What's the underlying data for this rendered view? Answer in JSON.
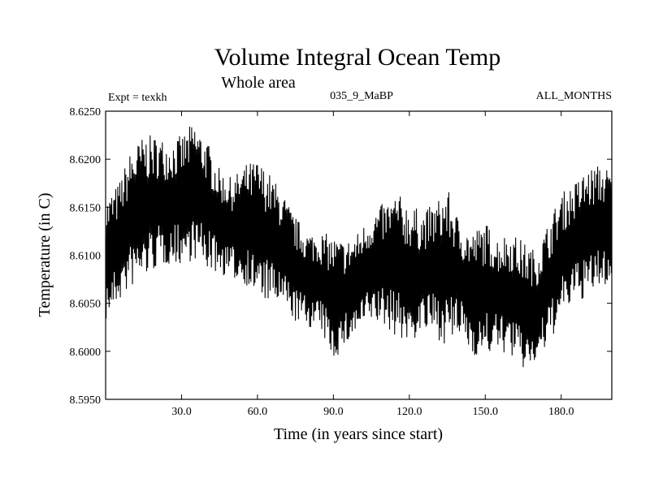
{
  "chart_data": {
    "type": "line",
    "title": "Volume Integral Ocean Temp",
    "subtitle": "Whole area",
    "annotations": {
      "experiment": "Expt = texkh",
      "period": "035_9_MaBP",
      "months": "ALL_MONTHS"
    },
    "xlabel": "Time (in years since start)",
    "ylabel": "Temperature (in C)",
    "xlim": [
      0,
      200
    ],
    "ylim": [
      8.595,
      8.625
    ],
    "xticks": [
      30,
      60,
      90,
      120,
      150,
      180
    ],
    "xtick_labels": [
      "30.0",
      "60.0",
      "90.0",
      "120.0",
      "150.0",
      "180.0"
    ],
    "yticks": [
      8.595,
      8.6,
      8.605,
      8.61,
      8.615,
      8.62,
      8.625
    ],
    "ytick_labels": [
      "8.5950",
      "8.6000",
      "8.6050",
      "8.6100",
      "8.6150",
      "8.6200",
      "8.6250"
    ],
    "grid": false,
    "series": [
      {
        "name": "Volume integral ocean temperature",
        "color": "#000000",
        "envelope_x": [
          0,
          5,
          10,
          15,
          20,
          25,
          30,
          35,
          40,
          45,
          50,
          55,
          60,
          65,
          70,
          75,
          80,
          85,
          90,
          95,
          100,
          105,
          110,
          115,
          120,
          125,
          130,
          135,
          140,
          145,
          150,
          155,
          160,
          165,
          170,
          175,
          180,
          185,
          190,
          195,
          200
        ],
        "envelope_max": [
          8.616,
          8.6175,
          8.621,
          8.6225,
          8.6225,
          8.622,
          8.6225,
          8.624,
          8.622,
          8.619,
          8.618,
          8.6195,
          8.62,
          8.6185,
          8.6165,
          8.614,
          8.6125,
          8.6125,
          8.612,
          8.6115,
          8.6125,
          8.6145,
          8.6155,
          8.6165,
          8.6155,
          8.6145,
          8.6155,
          8.617,
          8.6135,
          8.6125,
          8.6135,
          8.612,
          8.6125,
          8.6115,
          8.6105,
          8.6135,
          8.6165,
          8.6175,
          8.619,
          8.6195,
          8.619
        ],
        "envelope_min": [
          8.603,
          8.605,
          8.6065,
          8.6075,
          8.6085,
          8.609,
          8.609,
          8.6095,
          8.6085,
          8.608,
          8.6075,
          8.607,
          8.6055,
          8.605,
          8.6045,
          8.603,
          8.6025,
          8.602,
          8.599,
          8.6005,
          8.602,
          8.603,
          8.6025,
          8.6015,
          8.6005,
          8.602,
          8.6015,
          8.6005,
          8.6015,
          8.5995,
          8.5995,
          8.6,
          8.5995,
          8.598,
          8.5985,
          8.6005,
          8.6035,
          8.605,
          8.6055,
          8.6065,
          8.607
        ]
      }
    ]
  }
}
